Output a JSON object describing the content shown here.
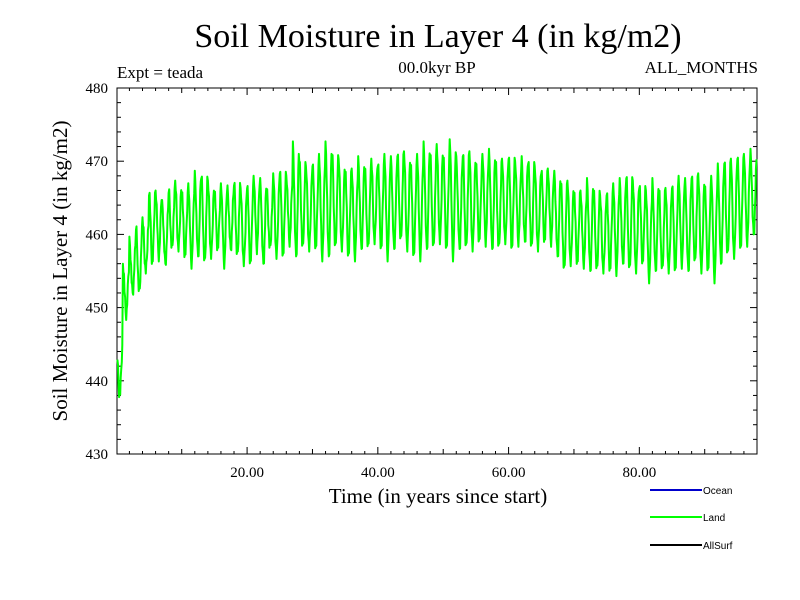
{
  "chart_data": {
    "type": "line",
    "title": "Soil Moisture in Layer 4 (in kg/m2)",
    "subtitle_left": "Expt = teada",
    "subtitle_center": "00.0kyr BP",
    "subtitle_right": "ALL_MONTHS",
    "xlabel": "Time (in years since start)",
    "ylabel": "Soil Moisture in Layer 4 (in kg/m2)",
    "xlim": [
      0.1,
      98
    ],
    "ylim": [
      430,
      480
    ],
    "xticks": [
      20,
      40,
      60,
      80
    ],
    "xtick_labels": [
      "20.00",
      "40.00",
      "60.00",
      "80.00"
    ],
    "yticks": [
      430,
      440,
      450,
      460,
      470,
      480
    ],
    "ytick_labels": [
      "430",
      "440",
      "450",
      "460",
      "470",
      "480"
    ],
    "grid": false,
    "legend_position": "bottom-right",
    "series": [
      {
        "name": "Ocean",
        "color": "#0000cc",
        "values": []
      },
      {
        "name": "Land",
        "color": "#00ff00",
        "seasonal_amplitude_note": "monthly values oscillate between the listed annual min and max",
        "annual_min": [
          438,
          449,
          452,
          452,
          455,
          456,
          457,
          456,
          458,
          458,
          457,
          456,
          457,
          456,
          457,
          458,
          456,
          458,
          457,
          456,
          456,
          458,
          456,
          458,
          457,
          457,
          459,
          457,
          458,
          458,
          458,
          457,
          457,
          458,
          458,
          457,
          457,
          458,
          458,
          459,
          458,
          457,
          458,
          459,
          458,
          457,
          457,
          458,
          458,
          459,
          458,
          457,
          458,
          458,
          458,
          459,
          459,
          458,
          458,
          459,
          458,
          459,
          459,
          458,
          458,
          459,
          459,
          457,
          455,
          456,
          456,
          456,
          455,
          455,
          455,
          455,
          455,
          456,
          455,
          455,
          456,
          454,
          455,
          455,
          455,
          455,
          456,
          455,
          456,
          455,
          455,
          454,
          456,
          457,
          457,
          458,
          459,
          460
        ],
        "annual_max": [
          445,
          456,
          459,
          461,
          462,
          466,
          466,
          464,
          466,
          467,
          466,
          467,
          468,
          468,
          467,
          466,
          467,
          466,
          467,
          466,
          467,
          468,
          467,
          466,
          468,
          469,
          468,
          472,
          470,
          469,
          470,
          471,
          472,
          471,
          470,
          469,
          469,
          470,
          469,
          470,
          470,
          471,
          470,
          471,
          471,
          470,
          471,
          472,
          471,
          472,
          471,
          473,
          470,
          471,
          471,
          470,
          471,
          471,
          470,
          470,
          471,
          470,
          470,
          470,
          469,
          469,
          469,
          468,
          467,
          467,
          466,
          466,
          467,
          466,
          465,
          466,
          467,
          467,
          468,
          467,
          467,
          466,
          467,
          466,
          466,
          467,
          468,
          467,
          468,
          468,
          467,
          468,
          469,
          470,
          470,
          471,
          471,
          471
        ]
      },
      {
        "name": "AllSurf",
        "color": "#000000",
        "values": []
      }
    ]
  }
}
